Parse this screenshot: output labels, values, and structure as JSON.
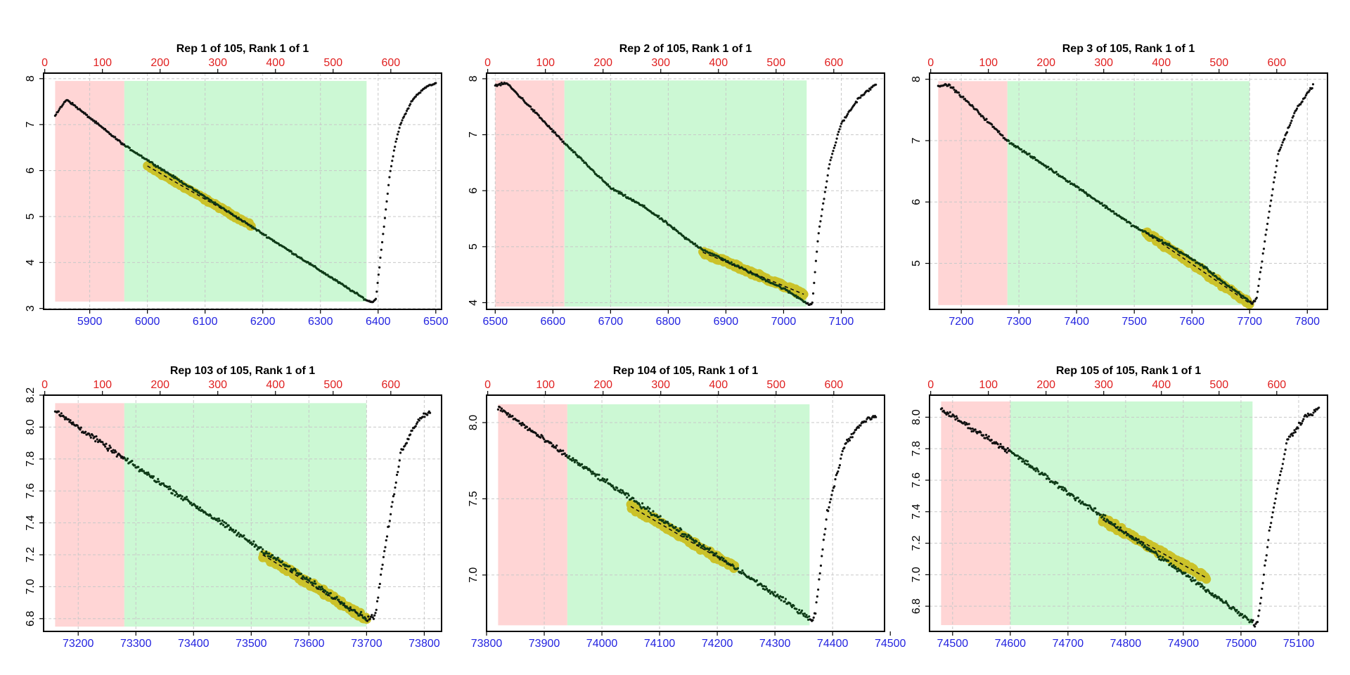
{
  "chart_data": [
    {
      "type": "scatter",
      "title": "Rep 1 of 105, Rank 1 of 1",
      "x_bottom": {
        "range": [
          5820,
          6510
        ],
        "ticks": [
          5900,
          6000,
          6100,
          6200,
          6300,
          6400,
          6500
        ],
        "color": "#2323e0"
      },
      "x_top": {
        "range": [
          -2,
          688
        ],
        "ticks": [
          0,
          100,
          200,
          300,
          400,
          500,
          600
        ],
        "color": "#e02020"
      },
      "y": {
        "range": [
          2.98,
          8.12
        ],
        "ticks": [
          3,
          4,
          5,
          6,
          7,
          8
        ]
      },
      "shaded_regions": [
        {
          "color": "#ffd5d5",
          "x": [
            5840,
            5960
          ],
          "y": [
            3.15,
            7.95
          ]
        },
        {
          "color": "#ccf8d4",
          "x": [
            5960,
            6380
          ],
          "y": [
            3.15,
            7.95
          ]
        }
      ],
      "profile": {
        "x": [
          5840,
          5860,
          5960,
          6380,
          6385,
          6392,
          6396,
          6420,
          6430,
          6440,
          6460,
          6480,
          6500
        ],
        "y": [
          7.2,
          7.55,
          6.55,
          3.18,
          3.15,
          3.15,
          3.2,
          5.9,
          6.6,
          7.05,
          7.55,
          7.8,
          7.9
        ],
        "noise": 0.03
      },
      "fit": {
        "x": [
          6000,
          6180
        ],
        "y": [
          6.1,
          4.8
        ],
        "noise": 0.04
      }
    },
    {
      "type": "scatter",
      "title": "Rep 2 of 105, Rank 1 of 1",
      "x_bottom": {
        "range": [
          6485,
          7175
        ],
        "ticks": [
          6500,
          6600,
          6700,
          6800,
          6900,
          7000,
          7100
        ],
        "color": "#2323e0"
      },
      "x_top": {
        "range": [
          -2,
          688
        ],
        "ticks": [
          0,
          100,
          200,
          300,
          400,
          500,
          600
        ],
        "color": "#e02020"
      },
      "y": {
        "range": [
          3.88,
          8.1
        ],
        "ticks": [
          4,
          5,
          6,
          7,
          8
        ]
      },
      "shaded_regions": [
        {
          "color": "#ffd5d5",
          "x": [
            6500,
            6620
          ],
          "y": [
            3.93,
            7.97
          ]
        },
        {
          "color": "#ccf8d4",
          "x": [
            6620,
            7040
          ],
          "y": [
            3.93,
            7.97
          ]
        }
      ],
      "profile": {
        "x": [
          6500,
          6520,
          6560,
          6620,
          6700,
          6760,
          6800,
          6830,
          6860,
          6920,
          7000,
          7040,
          7045,
          7050,
          7060,
          7080,
          7100,
          7130,
          7160
        ],
        "y": [
          7.88,
          7.92,
          7.5,
          6.85,
          6.05,
          5.7,
          5.4,
          5.15,
          4.95,
          4.65,
          4.25,
          4.0,
          3.96,
          4.0,
          5.2,
          6.5,
          7.2,
          7.65,
          7.9
        ],
        "noise": 0.03
      },
      "fit": {
        "x": [
          6860,
          7035
        ],
        "y": [
          4.9,
          4.15
        ],
        "noise": 0.05
      }
    },
    {
      "type": "scatter",
      "title": "Rep 3 of 105, Rank 1 of 1",
      "x_bottom": {
        "range": [
          7145,
          7835
        ],
        "ticks": [
          7200,
          7300,
          7400,
          7500,
          7600,
          7700,
          7800
        ],
        "color": "#2323e0"
      },
      "x_top": {
        "range": [
          -2,
          688
        ],
        "ticks": [
          0,
          100,
          200,
          300,
          400,
          500,
          600
        ],
        "color": "#e02020"
      },
      "y": {
        "range": [
          4.25,
          8.1
        ],
        "ticks": [
          5,
          6,
          7,
          8
        ]
      },
      "shaded_regions": [
        {
          "color": "#ffd5d5",
          "x": [
            7160,
            7280
          ],
          "y": [
            4.32,
            7.97
          ]
        },
        {
          "color": "#ccf8d4",
          "x": [
            7280,
            7700
          ],
          "y": [
            4.32,
            7.97
          ]
        }
      ],
      "profile": {
        "x": [
          7160,
          7180,
          7220,
          7280,
          7400,
          7500,
          7560,
          7620,
          7660,
          7700,
          7705,
          7712,
          7730,
          7750,
          7780,
          7810
        ],
        "y": [
          7.9,
          7.9,
          7.55,
          7.0,
          6.25,
          5.6,
          5.3,
          4.95,
          4.65,
          4.38,
          4.35,
          4.42,
          5.6,
          6.8,
          7.5,
          7.9
        ],
        "noise": 0.03
      },
      "fit": {
        "x": [
          7520,
          7700
        ],
        "y": [
          5.5,
          4.35
        ],
        "noise": 0.05
      }
    },
    {
      "type": "scatter",
      "title": "Rep 103 of 105, Rank 1 of 1",
      "x_bottom": {
        "range": [
          73140,
          73830
        ],
        "ticks": [
          73200,
          73300,
          73400,
          73500,
          73600,
          73700,
          73800
        ],
        "color": "#2323e0"
      },
      "x_top": {
        "range": [
          -2,
          688
        ],
        "ticks": [
          0,
          100,
          200,
          300,
          400,
          500,
          600
        ],
        "color": "#e02020"
      },
      "y": {
        "range": [
          6.72,
          8.2
        ],
        "ticks": [
          6.8,
          7.0,
          7.2,
          7.4,
          7.6,
          7.8,
          8.0,
          8.2
        ]
      },
      "shaded_regions": [
        {
          "color": "#ffd5d5",
          "x": [
            73160,
            73280
          ],
          "y": [
            6.75,
            8.15
          ]
        },
        {
          "color": "#ccf8d4",
          "x": [
            73280,
            73700
          ],
          "y": [
            6.75,
            8.15
          ]
        }
      ],
      "profile": {
        "x": [
          73160,
          73280,
          73700,
          73705,
          73715,
          73730,
          73760,
          73790,
          73810
        ],
        "y": [
          8.1,
          7.8,
          6.8,
          6.8,
          6.82,
          7.2,
          7.85,
          8.05,
          8.1
        ],
        "noise": 0.025
      },
      "fit": {
        "x": [
          73520,
          73700
        ],
        "y": [
          7.2,
          6.8
        ],
        "noise": 0.025
      }
    },
    {
      "type": "scatter",
      "title": "Rep 104 of 105, Rank 1 of 1",
      "x_bottom": {
        "range": [
          73800,
          74490
        ],
        "ticks": [
          73800,
          73900,
          74000,
          74100,
          74200,
          74300,
          74400,
          74500
        ],
        "color": "#2323e0"
      },
      "x_top": {
        "range": [
          -2,
          688
        ],
        "ticks": [
          0,
          100,
          200,
          300,
          400,
          500,
          600
        ],
        "color": "#e02020"
      },
      "y": {
        "range": [
          6.63,
          8.18
        ],
        "ticks": [
          7.0,
          7.5,
          8.0
        ]
      },
      "shaded_regions": [
        {
          "color": "#ffd5d5",
          "x": [
            73820,
            73940
          ],
          "y": [
            6.67,
            8.12
          ]
        },
        {
          "color": "#ccf8d4",
          "x": [
            73940,
            74360
          ],
          "y": [
            6.67,
            8.12
          ]
        }
      ],
      "profile": {
        "x": [
          73820,
          73940,
          74360,
          74365,
          74370,
          74390,
          74420,
          74450,
          74475
        ],
        "y": [
          8.1,
          7.78,
          6.72,
          6.7,
          6.75,
          7.4,
          7.85,
          8.0,
          8.05
        ],
        "noise": 0.025
      },
      "fit": {
        "x": [
          74050,
          74230
        ],
        "y": [
          7.45,
          7.05
        ],
        "noise": 0.025
      }
    },
    {
      "type": "scatter",
      "title": "Rep 105 of 105, Rank 1 of 1",
      "x_bottom": {
        "range": [
          74460,
          75150
        ],
        "ticks": [
          74500,
          74600,
          74700,
          74800,
          74900,
          75000,
          75100
        ],
        "color": "#2323e0"
      },
      "x_top": {
        "range": [
          -2,
          688
        ],
        "ticks": [
          0,
          100,
          200,
          300,
          400,
          500,
          600
        ],
        "color": "#e02020"
      },
      "y": {
        "range": [
          6.64,
          8.14
        ],
        "ticks": [
          6.8,
          7.0,
          7.2,
          7.4,
          7.6,
          7.8,
          8.0
        ]
      },
      "shaded_regions": [
        {
          "color": "#ffd5d5",
          "x": [
            74480,
            74600
          ],
          "y": [
            6.68,
            8.1
          ]
        },
        {
          "color": "#ccf8d4",
          "x": [
            74600,
            75020
          ],
          "y": [
            6.68,
            8.1
          ]
        }
      ],
      "profile": {
        "x": [
          74480,
          74600,
          75020,
          75025,
          75030,
          75050,
          75080,
          75110,
          75135
        ],
        "y": [
          8.05,
          7.78,
          6.7,
          6.68,
          6.72,
          7.3,
          7.85,
          8.0,
          8.05
        ],
        "noise": 0.025
      },
      "fit": {
        "x": [
          74760,
          74940
        ],
        "y": [
          7.35,
          6.98
        ],
        "noise": 0.025
      }
    }
  ]
}
